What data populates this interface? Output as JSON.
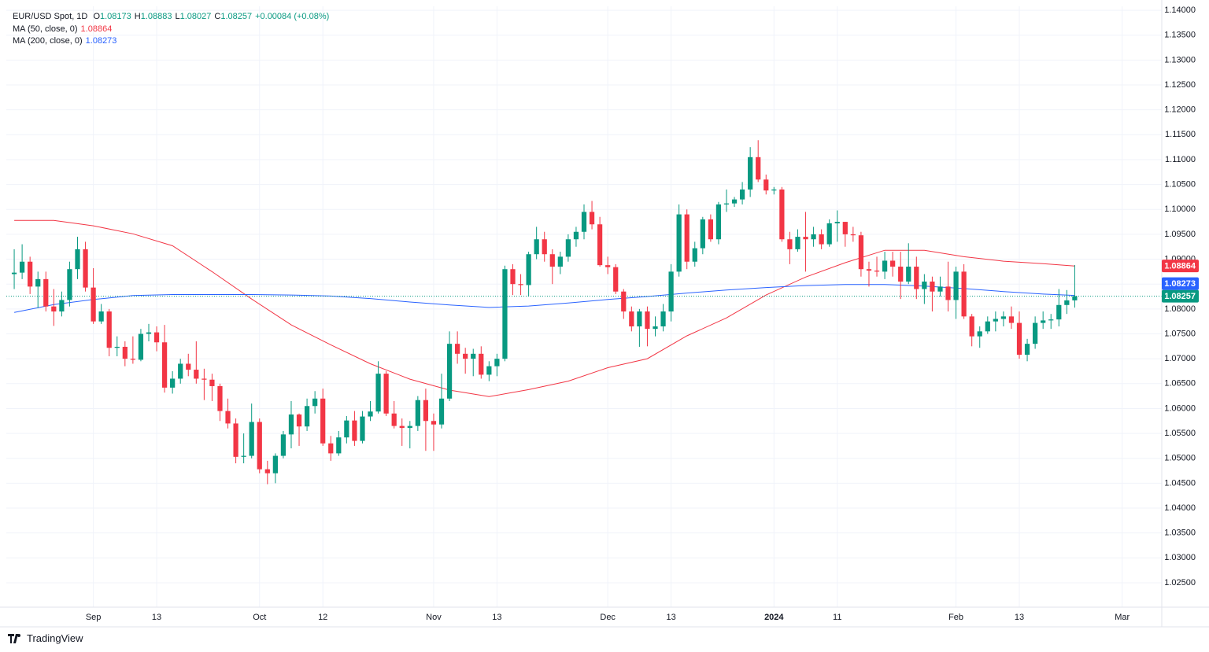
{
  "chart_data": {
    "type": "candlestick",
    "title": "EUR/USD Spot, 1D",
    "ohlc_legend": {
      "labels": [
        "O",
        "H",
        "L",
        "C"
      ],
      "values": [
        "1.08173",
        "1.08883",
        "1.08027",
        "1.08257"
      ],
      "change": "+0.00084 (+0.08%)"
    },
    "up_color": "#089981",
    "down_color": "#f23645",
    "close_label": "1.08257",
    "watermark": "TradingView",
    "grid": true,
    "x": [
      "2023-08-18",
      "2023-08-21",
      "2023-08-22",
      "2023-08-23",
      "2023-08-24",
      "2023-08-25",
      "2023-08-28",
      "2023-08-29",
      "2023-08-30",
      "2023-08-31",
      "2023-09-01",
      "2023-09-04",
      "2023-09-05",
      "2023-09-06",
      "2023-09-07",
      "2023-09-08",
      "2023-09-11",
      "2023-09-12",
      "2023-09-13",
      "2023-09-14",
      "2023-09-15",
      "2023-09-18",
      "2023-09-19",
      "2023-09-20",
      "2023-09-21",
      "2023-09-22",
      "2023-09-25",
      "2023-09-26",
      "2023-09-27",
      "2023-09-28",
      "2023-09-29",
      "2023-10-02",
      "2023-10-03",
      "2023-10-04",
      "2023-10-05",
      "2023-10-06",
      "2023-10-09",
      "2023-10-10",
      "2023-10-11",
      "2023-10-12",
      "2023-10-13",
      "2023-10-16",
      "2023-10-17",
      "2023-10-18",
      "2023-10-19",
      "2023-10-20",
      "2023-10-23",
      "2023-10-24",
      "2023-10-25",
      "2023-10-26",
      "2023-10-27",
      "2023-10-30",
      "2023-10-31",
      "2023-11-01",
      "2023-11-02",
      "2023-11-03",
      "2023-11-06",
      "2023-11-07",
      "2023-11-08",
      "2023-11-09",
      "2023-11-10",
      "2023-11-13",
      "2023-11-14",
      "2023-11-15",
      "2023-11-16",
      "2023-11-17",
      "2023-11-20",
      "2023-11-21",
      "2023-11-22",
      "2023-11-23",
      "2023-11-24",
      "2023-11-27",
      "2023-11-28",
      "2023-11-29",
      "2023-11-30",
      "2023-12-01",
      "2023-12-04",
      "2023-12-05",
      "2023-12-06",
      "2023-12-07",
      "2023-12-08",
      "2023-12-11",
      "2023-12-12",
      "2023-12-13",
      "2023-12-14",
      "2023-12-15",
      "2023-12-18",
      "2023-12-19",
      "2023-12-20",
      "2023-12-21",
      "2023-12-22",
      "2023-12-25",
      "2023-12-26",
      "2023-12-27",
      "2023-12-28",
      "2023-12-29",
      "2024-01-01",
      "2024-01-02",
      "2024-01-03",
      "2024-01-04",
      "2024-01-05",
      "2024-01-08",
      "2024-01-09",
      "2024-01-10",
      "2024-01-11",
      "2024-01-12",
      "2024-01-15",
      "2024-01-16",
      "2024-01-17",
      "2024-01-18",
      "2024-01-19",
      "2024-01-22",
      "2024-01-23",
      "2024-01-24",
      "2024-01-25",
      "2024-01-26",
      "2024-01-29",
      "2024-01-30",
      "2024-01-31",
      "2024-02-01",
      "2024-02-02",
      "2024-02-05",
      "2024-02-06",
      "2024-02-07",
      "2024-02-08",
      "2024-02-09",
      "2024-02-12",
      "2024-02-13",
      "2024-02-14",
      "2024-02-15",
      "2024-02-16",
      "2024-02-19",
      "2024-02-20",
      "2024-02-21",
      "2024-02-22"
    ],
    "open": [
      1.087,
      1.0873,
      1.0895,
      1.0845,
      1.086,
      1.0805,
      1.0795,
      1.0818,
      1.088,
      1.092,
      1.0843,
      1.0775,
      1.0795,
      1.0722,
      1.0724,
      1.07,
      1.0698,
      1.075,
      1.0753,
      1.0733,
      1.0642,
      1.066,
      1.069,
      1.0678,
      1.066,
      1.0658,
      1.0645,
      1.0595,
      1.057,
      1.0503,
      1.0505,
      1.0573,
      1.0478,
      1.047,
      1.0505,
      1.0548,
      1.0588,
      1.0564,
      1.0605,
      1.062,
      1.053,
      1.051,
      1.0542,
      1.0576,
      1.0535,
      1.0584,
      1.0594,
      1.067,
      1.059,
      1.0565,
      1.0561,
      1.0565,
      1.0617,
      1.0575,
      1.0568,
      1.062,
      1.073,
      1.071,
      1.07,
      1.071,
      1.0668,
      1.0685,
      1.07,
      1.088,
      1.085,
      1.0848,
      1.091,
      1.094,
      1.091,
      1.0885,
      1.0905,
      1.094,
      1.0955,
      1.0995,
      1.097,
      1.0888,
      1.0884,
      1.0835,
      1.0795,
      1.0765,
      1.0795,
      1.076,
      1.0765,
      1.0795,
      1.0875,
      1.099,
      1.0895,
      1.0922,
      1.098,
      1.094,
      1.101,
      1.1012,
      1.102,
      1.104,
      1.1105,
      1.106,
      1.1038,
      1.104,
      1.094,
      1.092,
      1.0945,
      1.094,
      1.095,
      1.093,
      1.0972,
      1.0975,
      1.095,
      1.0948,
      1.088,
      1.0877,
      1.0875,
      1.0897,
      1.0885,
      1.0855,
      1.0885,
      1.084,
      1.0855,
      1.0835,
      1.0845,
      1.0818,
      1.0875,
      1.0785,
      1.0745,
      1.0755,
      1.0775,
      1.078,
      1.0785,
      1.0772,
      1.0708,
      1.073,
      1.0772,
      1.0777,
      1.0779,
      1.0808,
      1.08173
    ],
    "high": [
      1.092,
      1.093,
      1.0905,
      1.0875,
      1.0875,
      1.084,
      1.0835,
      1.0895,
      1.0945,
      1.0935,
      1.0882,
      1.081,
      1.08,
      1.0745,
      1.0735,
      1.0745,
      1.076,
      1.077,
      1.0765,
      1.0768,
      1.0675,
      1.07,
      1.071,
      1.0735,
      1.068,
      1.067,
      1.065,
      1.062,
      1.058,
      1.055,
      1.061,
      1.058,
      1.0495,
      1.051,
      1.0555,
      1.0615,
      1.059,
      1.062,
      1.0635,
      1.064,
      1.0545,
      1.0555,
      1.0585,
      1.0595,
      1.0595,
      1.0615,
      1.0695,
      1.0675,
      1.0615,
      1.058,
      1.0575,
      1.0625,
      1.064,
      1.059,
      1.067,
      1.0755,
      1.0755,
      1.0722,
      1.072,
      1.0725,
      1.0695,
      1.071,
      1.0887,
      1.089,
      1.087,
      1.0915,
      1.0965,
      1.0955,
      1.092,
      1.0915,
      1.095,
      1.0965,
      1.101,
      1.1017,
      1.0985,
      1.0905,
      1.089,
      1.084,
      1.0805,
      1.08,
      1.0805,
      1.0785,
      1.081,
      1.089,
      1.101,
      1.1,
      1.0935,
      1.0985,
      1.099,
      1.1015,
      1.104,
      1.1025,
      1.1055,
      1.1125,
      1.1139,
      1.107,
      1.1045,
      1.1045,
      1.0955,
      1.096,
      1.0995,
      1.0965,
      1.096,
      1.098,
      1.0998,
      1.0975,
      1.0965,
      1.0955,
      1.0895,
      1.0905,
      1.0915,
      1.0915,
      1.0915,
      1.0932,
      1.0905,
      1.087,
      1.0865,
      1.0865,
      1.0895,
      1.0885,
      1.089,
      1.079,
      1.0765,
      1.0785,
      1.0795,
      1.0795,
      1.0805,
      1.0795,
      1.074,
      1.0785,
      1.0795,
      1.079,
      1.084,
      1.0838,
      1.08883
    ],
    "low": [
      1.084,
      1.086,
      1.083,
      1.0802,
      1.0795,
      1.0766,
      1.0785,
      1.0805,
      1.086,
      1.0835,
      1.077,
      1.077,
      1.0705,
      1.0705,
      1.0685,
      1.069,
      1.0695,
      1.0735,
      1.0715,
      1.0632,
      1.063,
      1.065,
      1.0665,
      1.065,
      1.0617,
      1.0615,
      1.0575,
      1.056,
      1.049,
      1.049,
      1.05,
      1.047,
      1.0448,
      1.045,
      1.05,
      1.052,
      1.0525,
      1.0555,
      1.059,
      1.0525,
      1.0495,
      1.0505,
      1.053,
      1.0525,
      1.053,
      1.0575,
      1.059,
      1.0585,
      1.056,
      1.0525,
      1.052,
      1.0555,
      1.0515,
      1.0515,
      1.056,
      1.0615,
      1.069,
      1.067,
      1.0665,
      1.066,
      1.0655,
      1.0665,
      1.0695,
      1.0828,
      1.0828,
      1.0825,
      1.09,
      1.0895,
      1.085,
      1.087,
      1.0895,
      1.0925,
      1.094,
      1.096,
      1.0885,
      1.087,
      1.083,
      1.078,
      1.0755,
      1.0724,
      1.0725,
      1.0745,
      1.0755,
      1.0775,
      1.0865,
      1.088,
      1.0885,
      1.091,
      1.0935,
      1.093,
      1.0995,
      1.1005,
      1.101,
      1.1025,
      1.1055,
      1.103,
      1.103,
      1.0935,
      1.089,
      1.0915,
      1.0875,
      1.0925,
      1.092,
      1.0925,
      1.0935,
      1.0925,
      1.0935,
      1.0865,
      1.0845,
      1.0865,
      1.086,
      1.0865,
      1.082,
      1.085,
      1.082,
      1.081,
      1.0795,
      1.0825,
      1.0795,
      1.078,
      1.078,
      1.0725,
      1.0722,
      1.075,
      1.0755,
      1.0765,
      1.076,
      1.07,
      1.0695,
      1.072,
      1.076,
      1.076,
      1.0765,
      1.079,
      1.08027
    ],
    "close": [
      1.0873,
      1.0895,
      1.0845,
      1.086,
      1.0805,
      1.0795,
      1.0818,
      1.088,
      1.092,
      1.0843,
      1.0775,
      1.0795,
      1.0722,
      1.0724,
      1.07,
      1.0698,
      1.075,
      1.0753,
      1.0733,
      1.0642,
      1.066,
      1.069,
      1.0678,
      1.066,
      1.0658,
      1.0645,
      1.0595,
      1.057,
      1.0503,
      1.0505,
      1.0573,
      1.0478,
      1.047,
      1.0505,
      1.0548,
      1.0588,
      1.0564,
      1.0605,
      1.062,
      1.053,
      1.051,
      1.0542,
      1.0576,
      1.0535,
      1.0584,
      1.0594,
      1.067,
      1.059,
      1.0565,
      1.0561,
      1.0565,
      1.0617,
      1.0575,
      1.0568,
      1.062,
      1.073,
      1.071,
      1.07,
      1.071,
      1.0668,
      1.0685,
      1.07,
      1.088,
      1.085,
      1.0848,
      1.091,
      1.094,
      1.091,
      1.0885,
      1.0905,
      1.094,
      1.0955,
      1.0995,
      1.097,
      1.0888,
      1.0884,
      1.0835,
      1.0795,
      1.0765,
      1.0795,
      1.076,
      1.0765,
      1.0795,
      1.0875,
      1.099,
      1.0895,
      1.0922,
      1.098,
      1.094,
      1.101,
      1.1012,
      1.102,
      1.104,
      1.1105,
      1.106,
      1.1038,
      1.104,
      1.094,
      1.092,
      1.0945,
      1.094,
      1.095,
      1.093,
      1.0972,
      1.0975,
      1.095,
      1.0948,
      1.088,
      1.0877,
      1.0875,
      1.0897,
      1.0885,
      1.0855,
      1.0885,
      1.084,
      1.0855,
      1.0835,
      1.0845,
      1.0818,
      1.0875,
      1.0785,
      1.0745,
      1.0755,
      1.0775,
      1.078,
      1.0785,
      1.0772,
      1.0708,
      1.073,
      1.0772,
      1.0777,
      1.0779,
      1.0808,
      1.08173,
      1.08257
    ],
    "series": [
      {
        "name": "MA (50, close, 0)",
        "color": "#f23645",
        "last_label": "1.08864",
        "x": [
          "2023-08-18",
          "2023-08-25",
          "2023-09-01",
          "2023-09-08",
          "2023-09-15",
          "2023-09-22",
          "2023-09-29",
          "2023-10-06",
          "2023-10-13",
          "2023-10-20",
          "2023-10-27",
          "2023-11-03",
          "2023-11-10",
          "2023-11-17",
          "2023-11-24",
          "2023-12-01",
          "2023-12-08",
          "2023-12-15",
          "2023-12-22",
          "2023-12-29",
          "2024-01-05",
          "2024-01-12",
          "2024-01-19",
          "2024-01-26",
          "2024-02-02",
          "2024-02-09",
          "2024-02-16",
          "2024-02-22"
        ],
        "values": [
          1.0978,
          1.0978,
          1.0967,
          1.0951,
          1.0927,
          1.0875,
          1.082,
          1.0768,
          1.0728,
          1.069,
          1.0659,
          1.0637,
          1.0624,
          1.0638,
          1.0655,
          1.0682,
          1.07,
          1.0746,
          1.0782,
          1.0828,
          1.0864,
          1.0893,
          1.0918,
          1.0918,
          1.0905,
          1.0896,
          1.0891,
          1.08864
        ]
      },
      {
        "name": "MA (200, close, 0)",
        "color": "#2962ff",
        "last_label": "1.08273",
        "x": [
          "2023-08-18",
          "2023-08-25",
          "2023-09-01",
          "2023-09-08",
          "2023-09-15",
          "2023-09-22",
          "2023-09-29",
          "2023-10-06",
          "2023-10-13",
          "2023-10-20",
          "2023-10-27",
          "2023-11-03",
          "2023-11-10",
          "2023-11-17",
          "2023-11-24",
          "2023-12-01",
          "2023-12-08",
          "2023-12-15",
          "2023-12-22",
          "2023-12-29",
          "2024-01-05",
          "2024-01-12",
          "2024-01-19",
          "2024-01-26",
          "2024-02-02",
          "2024-02-09",
          "2024-02-16",
          "2024-02-22"
        ],
        "values": [
          1.0793,
          1.0809,
          1.0819,
          1.0827,
          1.0829,
          1.0829,
          1.0829,
          1.0828,
          1.0826,
          1.0821,
          1.0814,
          1.0808,
          1.0803,
          1.0806,
          1.0812,
          1.0819,
          1.0825,
          1.0832,
          1.0838,
          1.0843,
          1.0847,
          1.0849,
          1.0849,
          1.0846,
          1.0841,
          1.0835,
          1.083,
          1.08273
        ]
      }
    ],
    "xlim": [
      "2023-08-17",
      "2024-03-08"
    ],
    "xticks": [
      {
        "value": "2023-09-01",
        "label": "Sep"
      },
      {
        "value": "2023-09-13",
        "label": "13"
      },
      {
        "value": "2023-10-02",
        "label": "Oct"
      },
      {
        "value": "2023-10-12",
        "label": "12"
      },
      {
        "value": "2023-11-01",
        "label": "Nov"
      },
      {
        "value": "2023-11-13",
        "label": "13"
      },
      {
        "value": "2023-12-01",
        "label": "Dec"
      },
      {
        "value": "2023-12-13",
        "label": "13"
      },
      {
        "value": "2024-01-01",
        "label": "2024"
      },
      {
        "value": "2024-01-11",
        "label": "11"
      },
      {
        "value": "2024-02-01",
        "label": "Feb"
      },
      {
        "value": "2024-02-13",
        "label": "13"
      },
      {
        "value": "2024-03-01",
        "label": "Mar"
      }
    ],
    "ylim": [
      1.0201,
      1.1408
    ],
    "yticks": [
      {
        "value": 1.14,
        "label": "1.14000"
      },
      {
        "value": 1.135,
        "label": "1.13500"
      },
      {
        "value": 1.13,
        "label": "1.13000"
      },
      {
        "value": 1.125,
        "label": "1.12500"
      },
      {
        "value": 1.12,
        "label": "1.12000"
      },
      {
        "value": 1.115,
        "label": "1.11500"
      },
      {
        "value": 1.11,
        "label": "1.11000"
      },
      {
        "value": 1.105,
        "label": "1.10500"
      },
      {
        "value": 1.1,
        "label": "1.10000"
      },
      {
        "value": 1.095,
        "label": "1.09500"
      },
      {
        "value": 1.09,
        "label": "1.09000"
      },
      {
        "value": 1.085,
        "label": "1.08500"
      },
      {
        "value": 1.08,
        "label": "1.08000"
      },
      {
        "value": 1.075,
        "label": "1.07500"
      },
      {
        "value": 1.07,
        "label": "1.07000"
      },
      {
        "value": 1.065,
        "label": "1.06500"
      },
      {
        "value": 1.06,
        "label": "1.06000"
      },
      {
        "value": 1.055,
        "label": "1.05500"
      },
      {
        "value": 1.05,
        "label": "1.05000"
      },
      {
        "value": 1.045,
        "label": "1.04500"
      },
      {
        "value": 1.04,
        "label": "1.04000"
      },
      {
        "value": 1.035,
        "label": "1.03500"
      },
      {
        "value": 1.03,
        "label": "1.03000"
      },
      {
        "value": 1.025,
        "label": "1.02500"
      }
    ]
  }
}
